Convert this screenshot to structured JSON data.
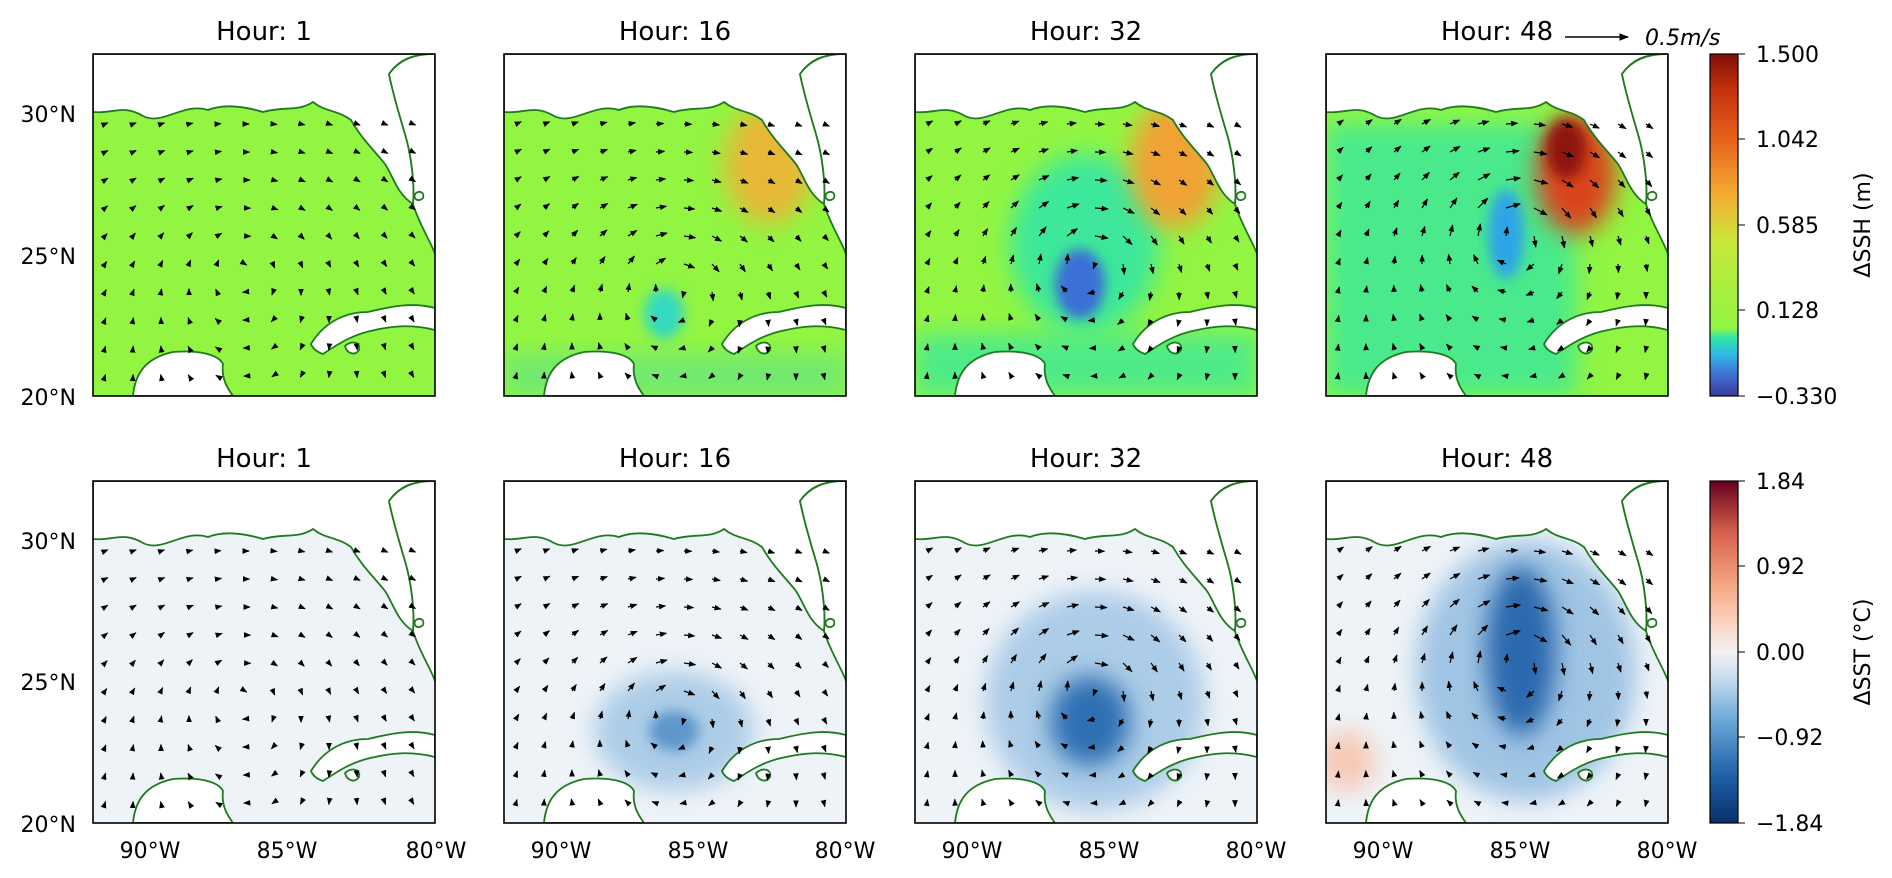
{
  "colors": {
    "land": "#ffffff",
    "coast": "#1f7a1f",
    "arrow": "#000000",
    "ssh_zero": "#92f542",
    "sst_zero": "#eef3f8"
  },
  "reference_arrow": {
    "label": "0.5m/s",
    "speed": 0.5
  },
  "rows": [
    {
      "variable": "ΔSSH",
      "panels": [
        {
          "title": "Hour: 1"
        },
        {
          "title": "Hour: 16"
        },
        {
          "title": "Hour: 32"
        },
        {
          "title": "Hour: 48"
        }
      ],
      "colorbar": {
        "label": "ΔSSH (m)",
        "ticks": [
          "1.500",
          "1.042",
          "0.585",
          "0.128",
          "−0.330"
        ],
        "range": [
          -0.33,
          1.5
        ]
      }
    },
    {
      "variable": "ΔSST",
      "panels": [
        {
          "title": "Hour: 1"
        },
        {
          "title": "Hour: 16"
        },
        {
          "title": "Hour: 32"
        },
        {
          "title": "Hour: 48"
        }
      ],
      "colorbar": {
        "label": "ΔSST (°C)",
        "ticks": [
          "1.84",
          "0.92",
          "0.00",
          "−0.92",
          "−1.84"
        ],
        "range": [
          -1.84,
          1.84
        ]
      }
    }
  ],
  "axes": {
    "lat_ticks": [
      "30°N",
      "25°N",
      "20°N"
    ],
    "lon_ticks": [
      "90°W",
      "85°W",
      "80°W"
    ],
    "lat_range": [
      20,
      32
    ],
    "lon_range": [
      -92.5,
      -80
    ]
  },
  "chart_data": {
    "type": "heatmap",
    "description_hours": [
      1,
      16,
      32,
      48
    ],
    "ssh_anomaly_peak_m": {
      "hour_1": 0.0,
      "hour_16": 0.6,
      "hour_32": 0.75,
      "hour_48": 1.45
    },
    "ssh_anomaly_min_m": {
      "hour_1": 0.0,
      "hour_16": -0.1,
      "hour_32": -0.3,
      "hour_48": -0.2
    },
    "sst_anomaly_min_c": {
      "hour_1": 0.0,
      "hour_16": -0.9,
      "hour_32": -1.5,
      "hour_48": -1.7
    },
    "sst_anomaly_max_c": {
      "hour_1": 0.0,
      "hour_16": 0.0,
      "hour_32": 0.0,
      "hour_48": 0.4
    },
    "xlim": [
      -92.5,
      -80
    ],
    "ylim": [
      20,
      32
    ]
  }
}
